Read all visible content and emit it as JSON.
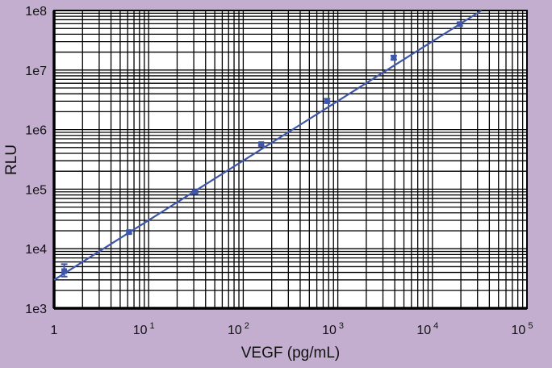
{
  "chart_data": {
    "type": "scatter",
    "title": "",
    "xlabel": "VEGF (pg/mL)",
    "ylabel": "RLU",
    "xscale": "log",
    "yscale": "log",
    "xlim": [
      1,
      100000
    ],
    "ylim": [
      1000,
      100000000
    ],
    "grid": true,
    "x_tick_labels": [
      {
        "base": "1",
        "exp": ""
      },
      {
        "base": "10",
        "exp": "1"
      },
      {
        "base": "10",
        "exp": "2"
      },
      {
        "base": "10",
        "exp": "3"
      },
      {
        "base": "10",
        "exp": "4"
      },
      {
        "base": "10",
        "exp": "5"
      }
    ],
    "y_tick_labels": [
      "1e3",
      "1e4",
      "1e5",
      "1e6",
      "1e7",
      "1e8"
    ],
    "series": [
      {
        "x": [
          1.28,
          6.2,
          31,
          155,
          770,
          3900,
          19500
        ],
        "y": [
          4200,
          19000,
          90000,
          570000,
          3000000,
          16000000,
          59000000
        ],
        "y_err_low": [
          3400,
          18000,
          86000,
          540000,
          2800000,
          15000000,
          55000000
        ],
        "y_err_high": [
          5500,
          20000,
          95000,
          600000,
          3300000,
          17500000,
          63000000
        ],
        "color": "#3f56a8"
      }
    ],
    "fit_line": {
      "x": [
        1,
        33000
      ],
      "y": [
        3000,
        100000000
      ],
      "color": "#3f56a8"
    }
  }
}
